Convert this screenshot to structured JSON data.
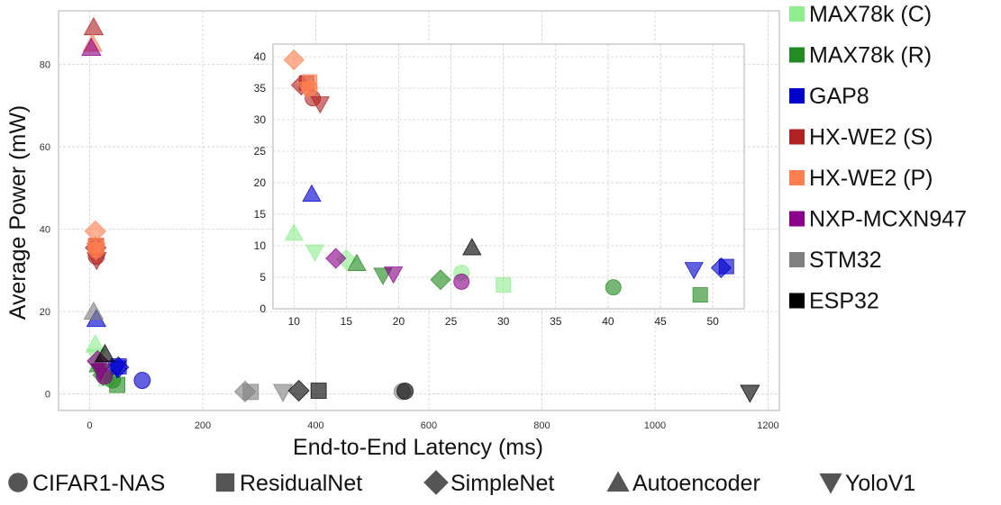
{
  "chart_data": {
    "type": "scatter",
    "title": "",
    "xlabel": "End-to-End Latency (ms)",
    "ylabel": "Average Power (mW)",
    "xlim": [
      -55,
      1220
    ],
    "ylim": [
      -4,
      93
    ],
    "xticks": [
      0,
      200,
      400,
      600,
      800,
      1000,
      1200
    ],
    "yticks": [
      0,
      20,
      40,
      60,
      80
    ],
    "grid": true,
    "legend_position": "right",
    "colors": {
      "MAX78k (C)": "#90ee90",
      "MAX78k (R)": "#228b22",
      "GAP8": "#0000cd",
      "HX-WE2 (S)": "#b22222",
      "HX-WE2 (P)": "#ff7f50",
      "NXP-MCXN947": "#8b008b",
      "STM32": "#808080",
      "ESP32": "#000000"
    },
    "legend": [
      {
        "label": "MAX78k (C)",
        "color": "#90ee90"
      },
      {
        "label": "MAX78k (R)",
        "color": "#228b22"
      },
      {
        "label": "GAP8",
        "color": "#0000cd"
      },
      {
        "label": "HX-WE2 (S)",
        "color": "#b22222"
      },
      {
        "label": "HX-WE2 (P)",
        "color": "#ff7f50"
      },
      {
        "label": "NXP-MCXN947",
        "color": "#8b008b"
      },
      {
        "label": "STM32",
        "color": "#808080"
      },
      {
        "label": "ESP32",
        "color": "#000000"
      }
    ],
    "marker_legend": [
      {
        "label": "CIFAR1-NAS",
        "shape": "circle"
      },
      {
        "label": "ResidualNet",
        "shape": "square"
      },
      {
        "label": "SimpleNet",
        "shape": "diamond"
      },
      {
        "label": "Autoencoder",
        "shape": "triangle-up"
      },
      {
        "label": "YoloV1",
        "shape": "triangle-down"
      }
    ],
    "points": [
      {
        "device": "MAX78k (C)",
        "model": "CIFAR1-NAS",
        "x": 26,
        "y": 5.7
      },
      {
        "device": "MAX78k (C)",
        "model": "ResidualNet",
        "x": 30,
        "y": 3.8
      },
      {
        "device": "MAX78k (C)",
        "model": "SimpleNet",
        "x": 15,
        "y": 7.8
      },
      {
        "device": "MAX78k (C)",
        "model": "Autoencoder",
        "x": 10,
        "y": 12
      },
      {
        "device": "MAX78k (C)",
        "model": "YoloV1",
        "x": 12,
        "y": 9
      },
      {
        "device": "MAX78k (R)",
        "model": "CIFAR1-NAS",
        "x": 40.5,
        "y": 3.4
      },
      {
        "device": "MAX78k (R)",
        "model": "ResidualNet",
        "x": 48.8,
        "y": 2.2
      },
      {
        "device": "MAX78k (R)",
        "model": "SimpleNet",
        "x": 24,
        "y": 4.6
      },
      {
        "device": "MAX78k (R)",
        "model": "Autoencoder",
        "x": 16,
        "y": 7.2
      },
      {
        "device": "MAX78k (R)",
        "model": "YoloV1",
        "x": 18.5,
        "y": 5.3
      },
      {
        "device": "GAP8",
        "model": "CIFAR1-NAS",
        "x": 93,
        "y": 3.3
      },
      {
        "device": "GAP8",
        "model": "ResidualNet",
        "x": 51.3,
        "y": 6.7
      },
      {
        "device": "GAP8",
        "model": "SimpleNet",
        "x": 50.8,
        "y": 6.5
      },
      {
        "device": "GAP8",
        "model": "Autoencoder",
        "x": 11.7,
        "y": 18.2
      },
      {
        "device": "GAP8",
        "model": "YoloV1",
        "x": 48.2,
        "y": 6.2
      },
      {
        "device": "HX-WE2 (S)",
        "model": "CIFAR1-NAS",
        "x": 11.8,
        "y": 33.4
      },
      {
        "device": "HX-WE2 (S)",
        "model": "ResidualNet",
        "x": 11.2,
        "y": 35.8
      },
      {
        "device": "HX-WE2 (S)",
        "model": "SimpleNet",
        "x": 10.7,
        "y": 35.5
      },
      {
        "device": "HX-WE2 (S)",
        "model": "Autoencoder",
        "x": 7,
        "y": 89
      },
      {
        "device": "HX-WE2 (S)",
        "model": "YoloV1",
        "x": 12.5,
        "y": 32.5
      },
      {
        "device": "HX-WE2 (P)",
        "model": "CIFAR1-NAS",
        "x": 11.5,
        "y": 35
      },
      {
        "device": "HX-WE2 (P)",
        "model": "ResidualNet",
        "x": 11.5,
        "y": 36
      },
      {
        "device": "HX-WE2 (P)",
        "model": "SimpleNet",
        "x": 10,
        "y": 39.5
      },
      {
        "device": "HX-WE2 (P)",
        "model": "Autoencoder",
        "x": 5,
        "y": 85
      },
      {
        "device": "HX-WE2 (P)",
        "model": "YoloV1",
        "x": 11.2,
        "y": 34.8
      },
      {
        "device": "NXP-MCXN947",
        "model": "CIFAR1-NAS",
        "x": 26,
        "y": 4.3
      },
      {
        "device": "NXP-MCXN947",
        "model": "SimpleNet",
        "x": 14,
        "y": 8
      },
      {
        "device": "NXP-MCXN947",
        "model": "Autoencoder",
        "x": 3,
        "y": 84
      },
      {
        "device": "NXP-MCXN947",
        "model": "YoloV1",
        "x": 19.5,
        "y": 5.5
      },
      {
        "device": "STM32",
        "model": "CIFAR1-NAS",
        "x": 553,
        "y": 0.6
      },
      {
        "device": "STM32",
        "model": "ResidualNet",
        "x": 285,
        "y": 0.5
      },
      {
        "device": "STM32",
        "model": "SimpleNet",
        "x": 275,
        "y": 0.6
      },
      {
        "device": "STM32",
        "model": "Autoencoder",
        "x": 7,
        "y": 20
      },
      {
        "device": "STM32",
        "model": "YoloV1",
        "x": 342,
        "y": 0.5
      },
      {
        "device": "ESP32",
        "model": "CIFAR1-NAS",
        "x": 558,
        "y": 0.7
      },
      {
        "device": "ESP32",
        "model": "ResidualNet",
        "x": 405,
        "y": 0.8
      },
      {
        "device": "ESP32",
        "model": "SimpleNet",
        "x": 370,
        "y": 0.8
      },
      {
        "device": "ESP32",
        "model": "Autoencoder",
        "x": 27,
        "y": 9.7
      },
      {
        "device": "ESP32",
        "model": "YoloV1",
        "x": 1168,
        "y": 0.3
      }
    ],
    "inset": {
      "xlim": [
        8,
        53
      ],
      "ylim": [
        0,
        42
      ],
      "xticks": [
        10,
        15,
        20,
        25,
        30,
        35,
        40,
        45,
        50
      ],
      "yticks": [
        0,
        5,
        10,
        15,
        20,
        25,
        30,
        35,
        40
      ],
      "grid": true
    }
  }
}
